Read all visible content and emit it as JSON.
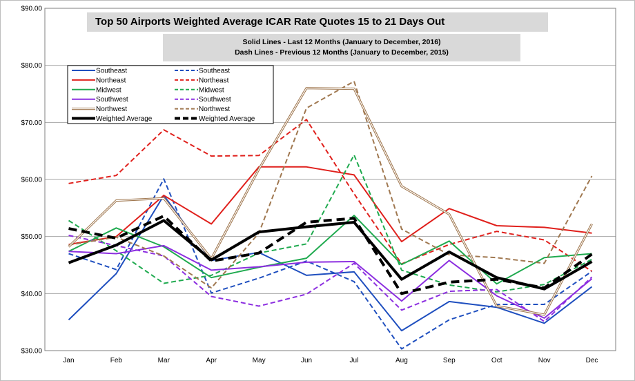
{
  "chart_data": {
    "type": "line",
    "title": "Top 50 Airports  Weighted Average ICAR Rate Quotes  15 to 21 Days Out",
    "subtitle_lines": [
      "Solid Lines - Last 12 Months  (January to December, 2016)",
      "Dash Lines - Previous 12 Months  (January to December, 2015)"
    ],
    "categories": [
      "Jan",
      "Feb",
      "Mar",
      "Apr",
      "May",
      "Jun",
      "Jul",
      "Aug",
      "Sep",
      "Oct",
      "Nov",
      "Dec"
    ],
    "y_ticks": [
      "$30.00",
      "$40.00",
      "$50.00",
      "$60.00",
      "$70.00",
      "$80.00",
      "$90.00"
    ],
    "ylim": [
      30,
      90
    ],
    "grid": true,
    "legend_position": "top-left",
    "series": [
      {
        "name": "Southeast",
        "color": "#1f4fbf",
        "style": "solid",
        "width": 2,
        "values": [
          35.4,
          43.5,
          57.2,
          45.8,
          47.2,
          43.2,
          43.8,
          33.5,
          38.6,
          37.6,
          34.8,
          41.2
        ]
      },
      {
        "name": "Southeast",
        "color": "#1f4fbf",
        "style": "dashed",
        "width": 2,
        "values": [
          47.0,
          44.2,
          60.1,
          40.1,
          42.7,
          45.7,
          42.1,
          30.3,
          35.4,
          38.1,
          38.1,
          43.9
        ]
      },
      {
        "name": "Northeast",
        "color": "#e0201c",
        "style": "solid",
        "width": 2,
        "values": [
          48.6,
          50.0,
          57.2,
          52.2,
          62.2,
          62.2,
          60.8,
          49.1,
          54.9,
          51.9,
          51.6,
          50.6
        ]
      },
      {
        "name": "Northeast",
        "color": "#e0201c",
        "style": "dashed",
        "width": 2,
        "values": [
          59.3,
          60.7,
          68.7,
          64.1,
          64.2,
          70.5,
          57.5,
          45.2,
          48.6,
          50.9,
          49.4,
          43.9
        ]
      },
      {
        "name": "Midwest",
        "color": "#1faa4f",
        "style": "solid",
        "width": 2,
        "values": [
          47.4,
          51.5,
          48.2,
          42.8,
          44.6,
          46.2,
          53.7,
          45.1,
          49.2,
          41.7,
          46.3,
          47.0
        ]
      },
      {
        "name": "Midwest",
        "color": "#1faa4f",
        "style": "dashed",
        "width": 2,
        "values": [
          52.8,
          47.5,
          41.8,
          43.2,
          47.1,
          48.7,
          64.3,
          44.1,
          41.5,
          40.3,
          41.6,
          46.0
        ]
      },
      {
        "name": "Southwest",
        "color": "#8c2ee0",
        "style": "solid",
        "width": 2,
        "values": [
          47.4,
          47.0,
          48.4,
          44.1,
          44.7,
          45.5,
          45.6,
          38.7,
          45.8,
          39.6,
          35.7,
          42.6
        ]
      },
      {
        "name": "Southwest",
        "color": "#8c2ee0",
        "style": "dashed",
        "width": 2,
        "values": [
          50.2,
          48.4,
          46.6,
          39.5,
          37.8,
          39.9,
          45.3,
          37.1,
          40.4,
          40.7,
          35.1,
          42.9
        ]
      },
      {
        "name": "Northwest",
        "color": "#a07850",
        "style": "double",
        "width": 2,
        "values": [
          48.2,
          56.3,
          56.7,
          46.1,
          61.8,
          76.0,
          75.9,
          58.8,
          53.9,
          37.8,
          36.3,
          52.2
        ]
      },
      {
        "name": "Northwest",
        "color": "#a07850",
        "style": "dashed",
        "width": 2,
        "values": [
          48.5,
          49.9,
          46.6,
          41.0,
          50.6,
          72.5,
          77.2,
          51.3,
          46.8,
          46.3,
          45.3,
          60.6
        ]
      },
      {
        "name": "Weighted Average",
        "color": "#000000",
        "style": "solid",
        "width": 4,
        "values": [
          45.4,
          48.5,
          52.8,
          45.9,
          50.8,
          51.7,
          52.5,
          42.5,
          47.3,
          42.8,
          40.8,
          45.6
        ]
      },
      {
        "name": "Weighted Average",
        "color": "#000000",
        "style": "dashed",
        "width": 4,
        "values": [
          51.4,
          49.7,
          53.6,
          45.7,
          47.1,
          52.5,
          53.2,
          40.0,
          42.0,
          42.5,
          41.0,
          46.9
        ]
      }
    ]
  }
}
